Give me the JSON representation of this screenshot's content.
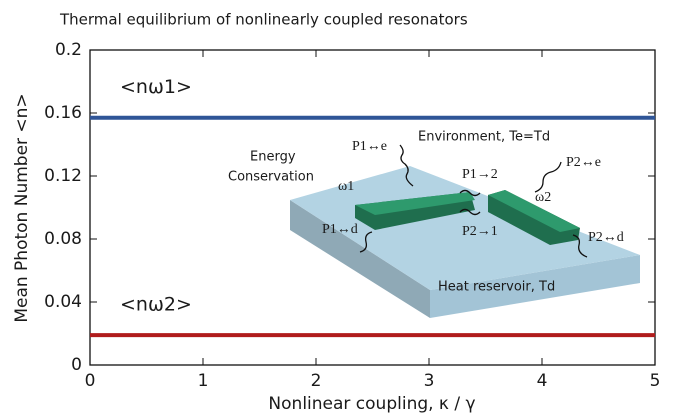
{
  "chart_data": {
    "type": "line",
    "title": "Thermal equilibrium of nonlinearly coupled resonators",
    "xlabel": "Nonlinear coupling, κ / γ",
    "ylabel": "Mean Photon Number  <n>",
    "x": [
      0,
      5
    ],
    "series": [
      {
        "name": "<nω1>",
        "color": "#2f5597",
        "values": [
          0.157,
          0.157
        ]
      },
      {
        "name": "<nω2>",
        "color": "#b01c1c",
        "values": [
          0.019,
          0.019
        ]
      }
    ],
    "xlim": [
      0,
      5
    ],
    "xticks": [
      0,
      1,
      2,
      3,
      4,
      5
    ],
    "ylim": [
      0,
      0.2
    ],
    "yticks": [
      0,
      0.04,
      0.08,
      0.12,
      0.16,
      0.2
    ],
    "annotations": [
      "Energy",
      "Conservation",
      "Environment, Te=Td",
      "P1↔e",
      "P1→2",
      "P2↔e",
      "ω1",
      "ω2",
      "P1↔d",
      "P2→1",
      "P2↔d",
      "Heat reservoir, Td"
    ]
  }
}
